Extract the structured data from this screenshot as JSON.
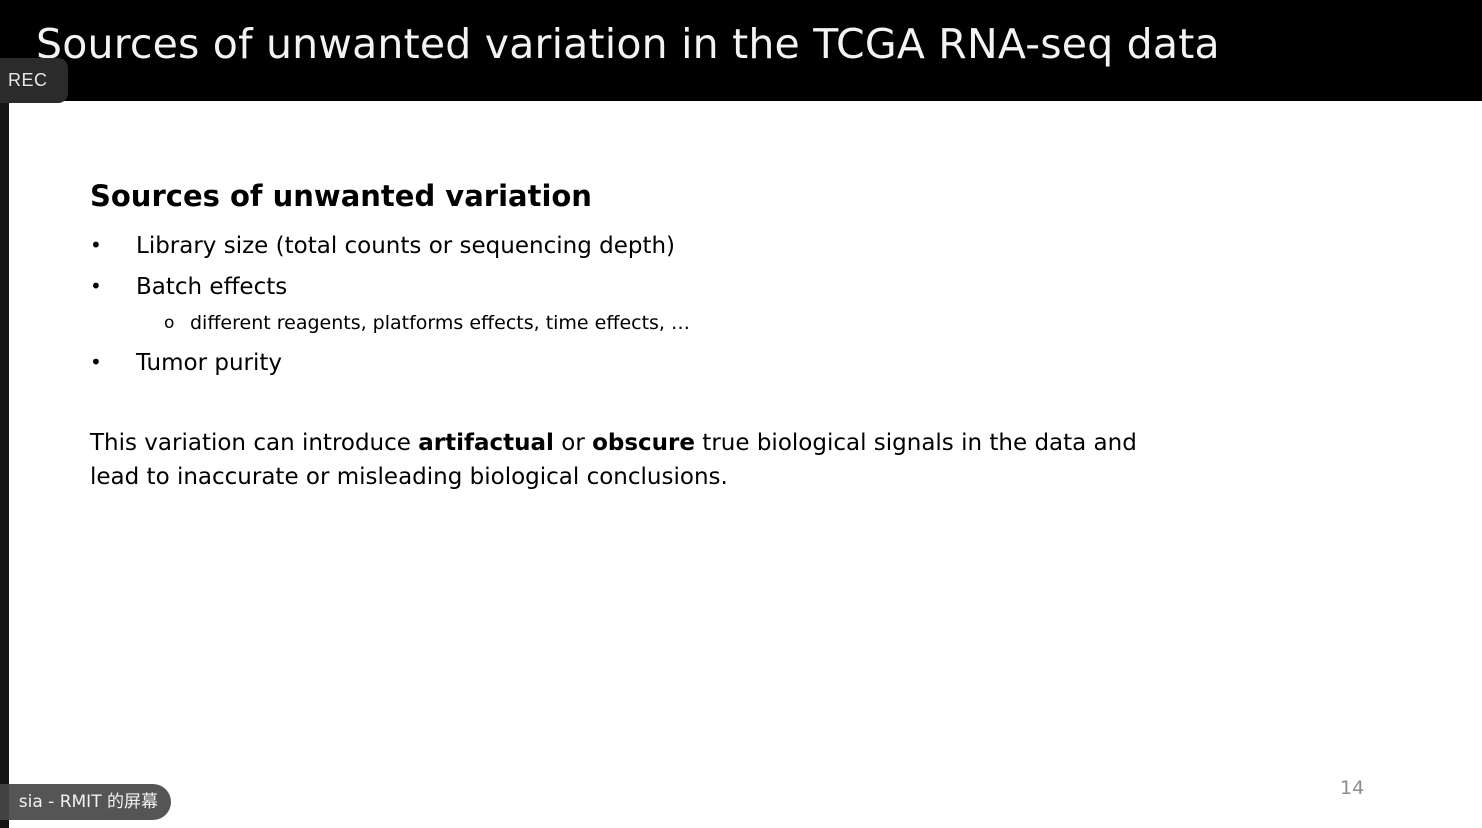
{
  "slide": {
    "title": "Sources of unwanted variation in the TCGA RNA-seq data",
    "heading": "Sources of unwanted variation",
    "bullets": [
      "Library size (total counts or sequencing depth)",
      "Batch effects",
      "Tumor purity"
    ],
    "bullet_symbol": "•",
    "sub_bullet_symbol": "o",
    "sub_bullet": "different reagents, platforms effects, time effects, …",
    "paragraph": {
      "part1": "This variation can introduce ",
      "bold1": "artifactual",
      "part2": " or ",
      "bold2": "obscure",
      "part3": " true biological signals in the data and lead to inaccurate or misleading biological conclusions."
    },
    "page_number": "14"
  },
  "overlay": {
    "rec_label": "REC",
    "screen_share_label": "sia - RMIT 的屏幕"
  }
}
